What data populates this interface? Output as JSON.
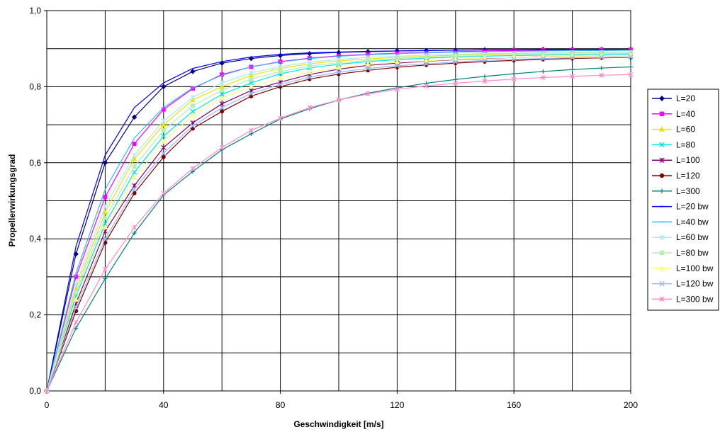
{
  "chart_data": {
    "type": "line",
    "title": "",
    "xlabel": "Geschwindigkeit [m/s]",
    "ylabel": "Propellerwirkungsgrad",
    "xlim": [
      0,
      200
    ],
    "ylim": [
      0,
      1.0
    ],
    "x_ticks": [
      "0",
      "40",
      "80",
      "120",
      "160",
      "200"
    ],
    "y_ticks": [
      "0,0",
      "0,2",
      "0,4",
      "0,6",
      "0,8",
      "1,0"
    ],
    "grid": true,
    "legend_position": "right",
    "x": [
      0,
      10,
      20,
      30,
      40,
      50,
      60,
      70,
      80,
      90,
      100,
      110,
      120,
      130,
      140,
      150,
      160,
      170,
      180,
      190,
      200
    ],
    "series": [
      {
        "name": "L=20",
        "color": "#000080",
        "marker": "diamond",
        "markers": true,
        "values": [
          0,
          0.36,
          0.6,
          0.72,
          0.8,
          0.84,
          0.862,
          0.874,
          0.882,
          0.887,
          0.89,
          0.892,
          0.894,
          0.895,
          0.896,
          0.897,
          0.897,
          0.898,
          0.898,
          0.898,
          0.898
        ]
      },
      {
        "name": "L=40",
        "color": "#ff00ff",
        "marker": "square",
        "markers": true,
        "values": [
          0,
          0.3,
          0.51,
          0.65,
          0.74,
          0.795,
          0.832,
          0.852,
          0.866,
          0.875,
          0.881,
          0.885,
          0.888,
          0.89,
          0.892,
          0.894,
          0.895,
          0.896,
          0.896,
          0.897,
          0.897
        ]
      },
      {
        "name": "L=60",
        "color": "#e6e600",
        "marker": "triangle",
        "markers": true,
        "values": [
          0,
          0.27,
          0.47,
          0.61,
          0.7,
          0.765,
          0.8,
          0.83,
          0.848,
          0.86,
          0.868,
          0.873,
          0.877,
          0.88,
          0.883,
          0.885,
          0.887,
          0.888,
          0.889,
          0.89,
          0.891
        ]
      },
      {
        "name": "L=80",
        "color": "#00e5ee",
        "marker": "x",
        "markers": true,
        "values": [
          0,
          0.25,
          0.44,
          0.575,
          0.67,
          0.735,
          0.78,
          0.81,
          0.834,
          0.849,
          0.859,
          0.866,
          0.871,
          0.875,
          0.878,
          0.88,
          0.882,
          0.883,
          0.884,
          0.885,
          0.886
        ]
      },
      {
        "name": "L=100",
        "color": "#800080",
        "marker": "star",
        "markers": true,
        "values": [
          0,
          0.23,
          0.42,
          0.54,
          0.64,
          0.705,
          0.755,
          0.79,
          0.812,
          0.832,
          0.846,
          0.856,
          0.862,
          0.867,
          0.871,
          0.874,
          0.877,
          0.879,
          0.88,
          0.881,
          0.882
        ]
      },
      {
        "name": "L=120",
        "color": "#800000",
        "marker": "circle",
        "markers": true,
        "values": [
          0,
          0.21,
          0.39,
          0.52,
          0.615,
          0.69,
          0.735,
          0.775,
          0.8,
          0.82,
          0.833,
          0.843,
          0.851,
          0.857,
          0.862,
          0.866,
          0.869,
          0.872,
          0.874,
          0.876,
          0.877
        ]
      },
      {
        "name": "L=300",
        "color": "#008080",
        "marker": "plus",
        "markers": true,
        "values": [
          0,
          0.165,
          0.295,
          0.415,
          0.515,
          0.577,
          0.634,
          0.676,
          0.715,
          0.742,
          0.765,
          0.783,
          0.797,
          0.809,
          0.819,
          0.827,
          0.834,
          0.84,
          0.845,
          0.849,
          0.852
        ]
      },
      {
        "name": "L=20 bw",
        "color": "#0000ff",
        "marker": "dash",
        "markers": false,
        "values": [
          0,
          0.38,
          0.62,
          0.745,
          0.81,
          0.848,
          0.866,
          0.878,
          0.885,
          0.889,
          0.891,
          0.893,
          0.894,
          0.895,
          0.896,
          0.897,
          0.897,
          0.897,
          0.898,
          0.898,
          0.898
        ]
      },
      {
        "name": "L=40 bw",
        "color": "#33bbee",
        "marker": "dash",
        "markers": false,
        "values": [
          0,
          0.31,
          0.53,
          0.665,
          0.745,
          0.797,
          0.83,
          0.852,
          0.865,
          0.874,
          0.88,
          0.884,
          0.887,
          0.889,
          0.891,
          0.892,
          0.893,
          0.894,
          0.895,
          0.895,
          0.896
        ]
      },
      {
        "name": "L=60 bw",
        "color": "#b0e4ff",
        "marker": "star",
        "markers": true,
        "values": [
          0,
          0.28,
          0.485,
          0.62,
          0.71,
          0.772,
          0.81,
          0.836,
          0.853,
          0.864,
          0.872,
          0.877,
          0.88,
          0.883,
          0.885,
          0.887,
          0.888,
          0.889,
          0.89,
          0.891,
          0.891
        ]
      },
      {
        "name": "L=80 bw",
        "color": "#b3f0b3",
        "marker": "square",
        "markers": true,
        "values": [
          0,
          0.26,
          0.455,
          0.59,
          0.685,
          0.75,
          0.79,
          0.82,
          0.84,
          0.854,
          0.863,
          0.869,
          0.874,
          0.877,
          0.88,
          0.882,
          0.884,
          0.885,
          0.886,
          0.887,
          0.888
        ]
      },
      {
        "name": "L=100 bw",
        "color": "#ffff80",
        "marker": "triangle",
        "markers": true,
        "values": [
          0,
          0.24,
          0.43,
          0.56,
          0.655,
          0.725,
          0.77,
          0.8,
          0.822,
          0.838,
          0.85,
          0.858,
          0.864,
          0.868,
          0.872,
          0.875,
          0.877,
          0.879,
          0.88,
          0.881,
          0.882
        ]
      },
      {
        "name": "L=120 bw",
        "color": "#99bbee",
        "marker": "x",
        "markers": true,
        "values": [
          0,
          0.22,
          0.4,
          0.53,
          0.625,
          0.697,
          0.745,
          0.782,
          0.806,
          0.825,
          0.838,
          0.848,
          0.855,
          0.86,
          0.865,
          0.869,
          0.872,
          0.874,
          0.876,
          0.877,
          0.878
        ]
      },
      {
        "name": "L=300 bw",
        "color": "#ff88cc",
        "marker": "star",
        "markers": true,
        "values": [
          0,
          0.18,
          0.32,
          0.43,
          0.52,
          0.585,
          0.64,
          0.685,
          0.717,
          0.745,
          0.765,
          0.781,
          0.793,
          0.802,
          0.809,
          0.815,
          0.82,
          0.824,
          0.827,
          0.83,
          0.832
        ]
      }
    ]
  }
}
